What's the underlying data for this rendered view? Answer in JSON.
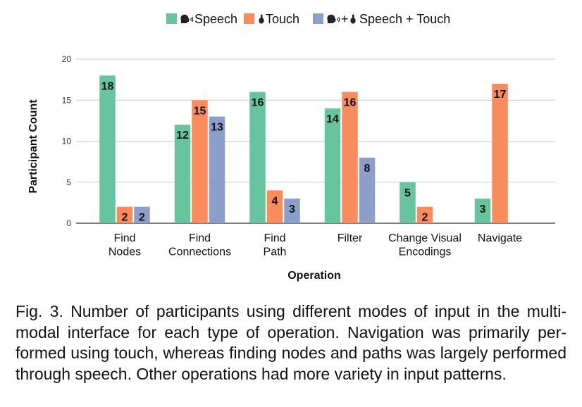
{
  "chart_data": {
    "type": "bar",
    "categories": [
      [
        "Find",
        "Nodes"
      ],
      [
        "Find",
        "Connections"
      ],
      [
        "Find",
        "Path"
      ],
      [
        "Filter"
      ],
      [
        "Change Visual",
        "Encodings"
      ],
      [
        "Navigate"
      ]
    ],
    "series": [
      {
        "name": "Speech",
        "legend_label": "Speech",
        "legend_icons": [
          "speech-icon"
        ],
        "color": "#66c49e",
        "values": [
          18,
          12,
          16,
          14,
          5,
          3
        ]
      },
      {
        "name": "Touch",
        "legend_label": "Touch",
        "legend_icons": [
          "touch-icon"
        ],
        "color": "#f98c5c",
        "values": [
          2,
          15,
          4,
          16,
          2,
          17
        ]
      },
      {
        "name": "Speech + Touch",
        "legend_label": "+",
        "legend_label_suffix": "Speech + Touch",
        "legend_icons": [
          "speech-icon",
          "touch-icon"
        ],
        "color": "#8c9fcb",
        "values": [
          2,
          13,
          3,
          8,
          0,
          0
        ]
      }
    ],
    "xlabel": "Operation",
    "ylabel": "Participant Count",
    "ylim": [
      0,
      20
    ],
    "yticks": [
      0,
      5,
      10,
      15,
      20
    ],
    "grid": true,
    "legend_position": "top-center",
    "data_labels": true
  },
  "caption": {
    "text": "Fig. 3. Number of participants using different modes of input in the multi-modal interface for each type of operation. Navigation was primarily per-formed using touch, whereas finding nodes and paths was largely performed through speech. Other operations had more variety in input patterns."
  },
  "colors": {
    "gridline": "#cccccc",
    "axis": "#333333",
    "icon": "#222222"
  }
}
